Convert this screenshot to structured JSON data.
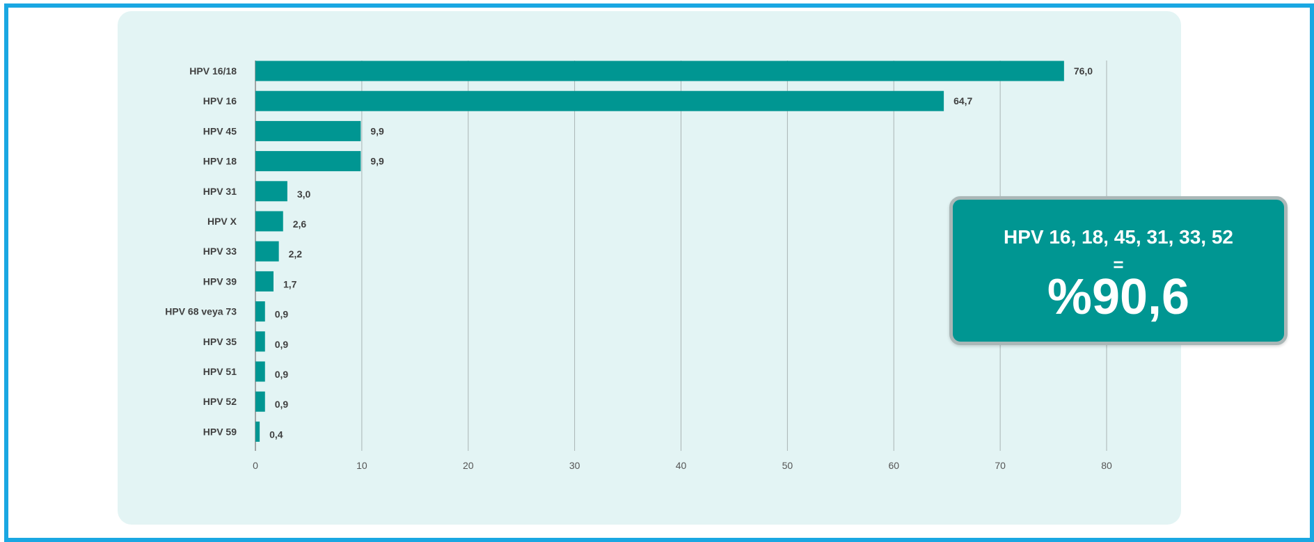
{
  "chart_data": {
    "type": "bar",
    "orientation": "horizontal",
    "categories": [
      "HPV 16/18",
      "HPV 16",
      "HPV 45",
      "HPV 18",
      "HPV 31",
      "HPV X",
      "HPV 33",
      "HPV 39",
      "HPV 68 veya 73",
      "HPV 35",
      "HPV 51",
      "HPV 52",
      "HPV 59"
    ],
    "values": [
      76.0,
      64.7,
      9.9,
      9.9,
      3.0,
      2.6,
      2.2,
      1.7,
      0.9,
      0.9,
      0.9,
      0.9,
      0.4
    ],
    "value_labels": [
      "76,0",
      "64,7",
      "9,9",
      "9,9",
      "3,0",
      "2,6",
      "2,2",
      "1,7",
      "0,9",
      "0,9",
      "0,9",
      "0,9",
      "0,4"
    ],
    "x_ticks": [
      "0",
      "10",
      "20",
      "30",
      "40",
      "50",
      "60",
      "70",
      "80"
    ],
    "xlim": [
      0,
      80
    ],
    "grid": "vertical",
    "bar_color": "#009692",
    "background": "#e3f4f4",
    "frame_color": "#1aa7e2"
  },
  "callout": {
    "types_label": "HPV 16, 18, 45, 31, 33, 52",
    "equals": "=",
    "percent": "%90,6",
    "color": "#009692"
  }
}
